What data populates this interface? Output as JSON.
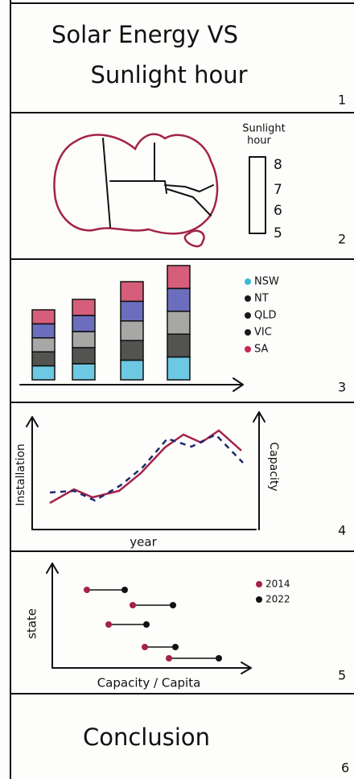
{
  "panels": [
    {
      "title": [
        "Solar Energy VS",
        "Sunlight hour"
      ],
      "number": "1"
    },
    {
      "legend_title": [
        "Sunlight",
        "hour"
      ],
      "scale": [
        "8",
        "7",
        "6",
        "5"
      ],
      "number": "2"
    },
    {
      "legend": [
        "NSW",
        "NT",
        "QLD",
        "VIC",
        "SA"
      ],
      "number": "3"
    },
    {
      "y_label": "Installation",
      "x_label": "year",
      "y2_label": "Capacity",
      "number": "4"
    },
    {
      "y_label": "state",
      "legend": [
        "2014",
        "2022"
      ],
      "x_label": "Capacity / Capita",
      "number": "5"
    },
    {
      "title": "Conclusion",
      "number": "6"
    }
  ]
}
